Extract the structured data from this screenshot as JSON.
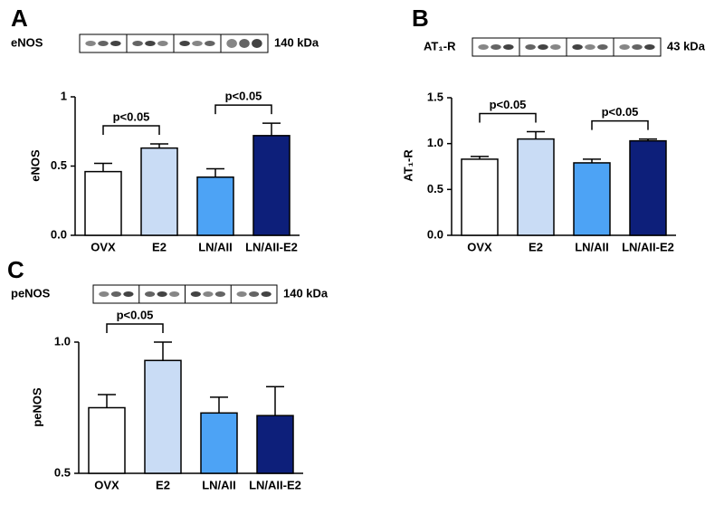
{
  "chart_data": [
    {
      "type": "bar",
      "panel": "A",
      "blot_label": "eNOS",
      "blot_size": "140 kDa",
      "ylabel": "eNOS",
      "categories": [
        "OVX",
        "E2",
        "LN/AII",
        "LN/AII-E2"
      ],
      "values": [
        0.46,
        0.63,
        0.42,
        0.72
      ],
      "errors": [
        0.06,
        0.03,
        0.06,
        0.09
      ],
      "colors": [
        "#ffffff",
        "#c9dcf5",
        "#4da3f5",
        "#0d1f7a"
      ],
      "ylim": [
        0,
        1
      ],
      "yticks": [
        {
          "value": 0,
          "label": "0.0"
        },
        0.5,
        1
      ],
      "brackets": [
        {
          "label": "p<0.05",
          "between": [
            0,
            1
          ]
        },
        {
          "label": "p<0.05",
          "between": [
            2,
            3
          ]
        }
      ]
    },
    {
      "type": "bar",
      "panel": "B",
      "blot_label": "AT₁-R",
      "blot_size": "43 kDa",
      "ylabel": "AT₁-R",
      "categories": [
        "OVX",
        "E2",
        "LN/AII",
        "LN/AII-E2"
      ],
      "values": [
        0.83,
        1.05,
        0.79,
        1.03
      ],
      "errors": [
        0.03,
        0.08,
        0.04,
        0.02
      ],
      "colors": [
        "#ffffff",
        "#c9dcf5",
        "#4da3f5",
        "#0d1f7a"
      ],
      "ylim": [
        0,
        1.5
      ],
      "yticks": [
        {
          "value": 0,
          "label": "0.0"
        },
        0.5,
        {
          "value": 1,
          "label": "1.0"
        },
        1.5
      ],
      "brackets": [
        {
          "label": "p<0.05",
          "between": [
            0,
            1
          ]
        },
        {
          "label": "p<0.05",
          "between": [
            2,
            3
          ]
        }
      ]
    },
    {
      "type": "bar",
      "panel": "C",
      "blot_label": "peNOS",
      "blot_size": "140 kDa",
      "ylabel": "peNOS",
      "categories": [
        "OVX",
        "E2",
        "LN/AII",
        "LN/AII-E2"
      ],
      "values": [
        0.75,
        0.93,
        0.73,
        0.72
      ],
      "errors": [
        0.05,
        0.07,
        0.06,
        0.11
      ],
      "colors": [
        "#ffffff",
        "#c9dcf5",
        "#4da3f5",
        "#0d1f7a"
      ],
      "ylim": [
        0.5,
        1
      ],
      "yticks": [
        0.5,
        {
          "value": 1,
          "label": "1.0"
        }
      ],
      "brackets": [
        {
          "label": "p<0.05",
          "between": [
            0,
            1
          ]
        }
      ]
    }
  ]
}
